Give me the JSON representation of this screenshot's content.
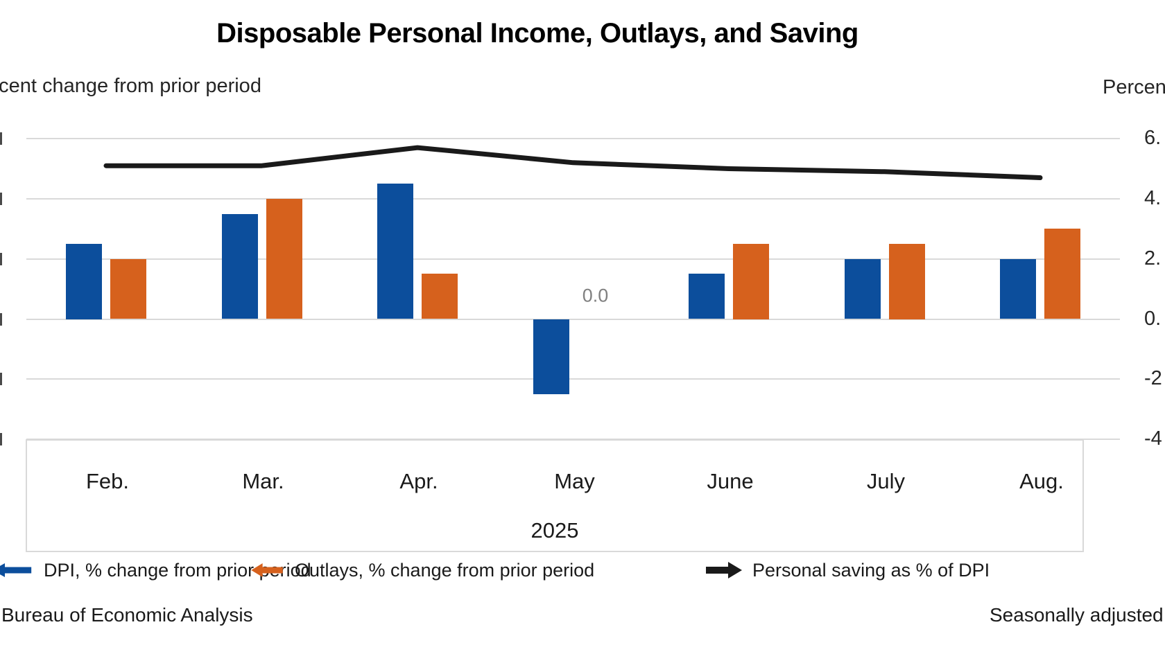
{
  "title": "Disposable Personal Income, Outlays, and Saving",
  "axes": {
    "left_title": "Percent change from prior period",
    "right_title": "Percent",
    "right_tick_labels": [
      "6.",
      "4.",
      "2.",
      "0.",
      "-2",
      "-4"
    ],
    "right_tick_values": [
      6,
      4,
      2,
      0,
      -2,
      -4
    ]
  },
  "x_axis": {
    "month_labels": [
      "Feb.",
      "Mar.",
      "Apr.",
      "May",
      "June",
      "July",
      "Aug."
    ],
    "year_label": "2025"
  },
  "legend": {
    "items": [
      {
        "label": "DPI, % change from prior period",
        "color": "#0c4e9c",
        "arrow_direction": "left"
      },
      {
        "label": "Outlays, % change from prior period",
        "color": "#d6611d",
        "arrow_direction": "left"
      },
      {
        "label": "Personal saving as % of DPI",
        "color": "#1a1a1a",
        "arrow_direction": "right"
      }
    ]
  },
  "footer": {
    "source": "Bureau of Economic Analysis",
    "note": "Seasonally adjusted"
  },
  "colors": {
    "dpi_bar": "#0c4e9c",
    "outlays_bar": "#d6611d",
    "saving_line": "#1a1a1a",
    "gridline": "#d9d9d9",
    "data_label": "#808080"
  },
  "chart_data": {
    "type": "bar",
    "subtype": "combo bar + line, dual axis",
    "title": "Disposable Personal Income, Outlays, and Saving",
    "categories": [
      "Feb.",
      "Mar.",
      "Apr.",
      "May",
      "June",
      "July",
      "Aug."
    ],
    "year": "2025",
    "series": [
      {
        "name": "DPI, % change from prior period",
        "render": "bar",
        "color": "#0c4e9c",
        "values": [
          2.5,
          3.5,
          4.5,
          -2.5,
          1.5,
          2.0,
          2.0
        ]
      },
      {
        "name": "Outlays, % change from prior period",
        "render": "bar",
        "color": "#d6611d",
        "values": [
          2.0,
          4.0,
          1.5,
          0.0,
          2.5,
          2.5,
          3.0
        ]
      },
      {
        "name": "Personal saving as % of DPI",
        "render": "line",
        "color": "#1a1a1a",
        "values": [
          5.1,
          5.1,
          5.7,
          5.2,
          5.0,
          4.9,
          4.7
        ]
      }
    ],
    "right_axis": {
      "label": "Percent",
      "ticks": [
        6,
        4,
        2,
        0,
        -2,
        -4
      ],
      "ylim": [
        -4.6,
        7.2
      ]
    },
    "left_axis": {
      "label": "Percent change from prior period",
      "tick_labels_visible": false
    },
    "data_labels": [
      {
        "series_index": 1,
        "category_index": 3,
        "text": "0.0"
      }
    ],
    "grid": true,
    "legend_position": "bottom",
    "units_note": "values read against the visible right-axis gridlines (2.0 units per gridline); left-axis tick labels are cut off at the image edge"
  }
}
